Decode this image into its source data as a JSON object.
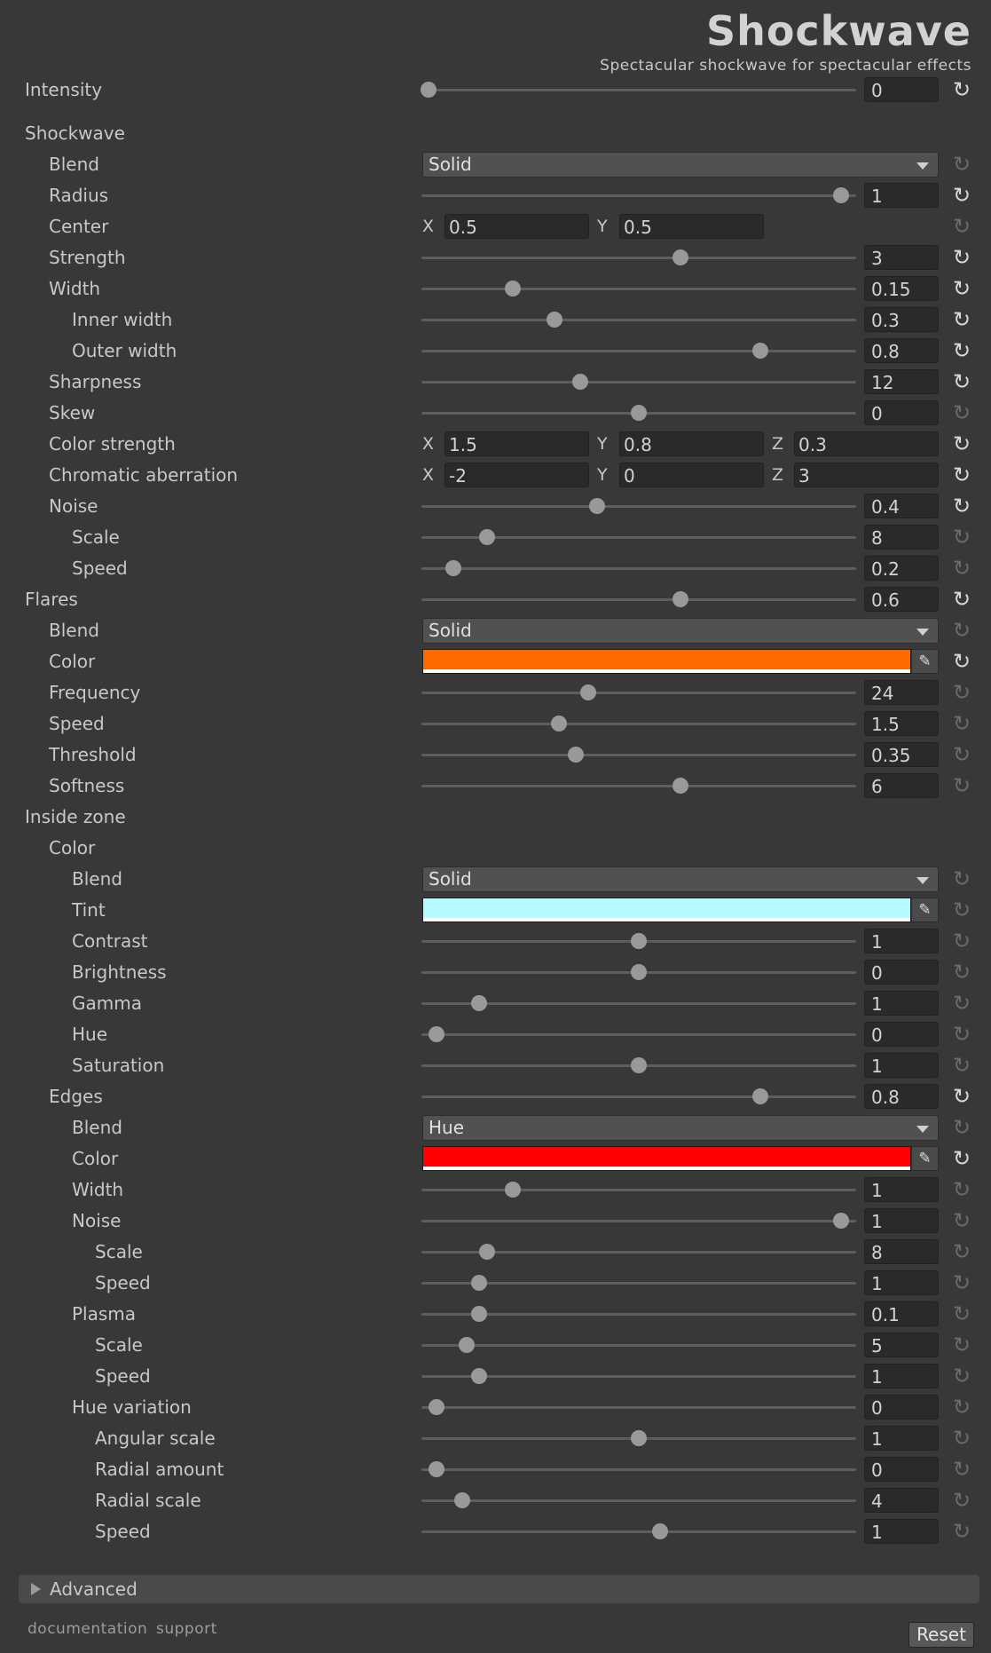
{
  "header": {
    "title": "Shockwave",
    "subtitle": "Spectacular shockwave for spectacular effects"
  },
  "rows": [
    {
      "label": "Intensity",
      "indent": 0,
      "type": "slider",
      "t": 0,
      "value": "0",
      "active": true,
      "top": 101
    },
    {
      "label": "Shockwave",
      "indent": 0,
      "type": "header",
      "top": 150
    },
    {
      "label": "Blend",
      "indent": 1,
      "type": "dropdown",
      "value": "Solid",
      "active": false,
      "top": 185
    },
    {
      "label": "Radius",
      "indent": 1,
      "type": "slider",
      "t": 0.98,
      "value": "1",
      "active": true,
      "top": 220
    },
    {
      "label": "Center",
      "indent": 1,
      "type": "vec2",
      "values": [
        "0.5",
        "0.5"
      ],
      "active": false,
      "top": 255
    },
    {
      "label": "Strength",
      "indent": 1,
      "type": "slider",
      "t": 0.6,
      "value": "3",
      "active": true,
      "top": 290
    },
    {
      "label": "Width",
      "indent": 1,
      "type": "slider",
      "t": 0.2,
      "value": "0.15",
      "active": true,
      "top": 325
    },
    {
      "label": "Inner width",
      "indent": 2,
      "type": "slider",
      "t": 0.3,
      "value": "0.3",
      "active": true,
      "top": 360
    },
    {
      "label": "Outer width",
      "indent": 2,
      "type": "slider",
      "t": 0.79,
      "value": "0.8",
      "active": true,
      "top": 395
    },
    {
      "label": "Sharpness",
      "indent": 1,
      "type": "slider",
      "t": 0.36,
      "value": "12",
      "active": true,
      "top": 430
    },
    {
      "label": "Skew",
      "indent": 1,
      "type": "slider",
      "t": 0.5,
      "value": "0",
      "active": false,
      "top": 465
    },
    {
      "label": "Color strength",
      "indent": 1,
      "type": "vec3",
      "values": [
        "1.5",
        "0.8",
        "0.3"
      ],
      "active": true,
      "top": 500
    },
    {
      "label": "Chromatic aberration",
      "indent": 1,
      "type": "vec3",
      "values": [
        "-2",
        "0",
        "3"
      ],
      "active": true,
      "top": 535
    },
    {
      "label": "Noise",
      "indent": 1,
      "type": "slider",
      "t": 0.4,
      "value": "0.4",
      "active": true,
      "top": 570
    },
    {
      "label": "Scale",
      "indent": 2,
      "type": "slider",
      "t": 0.14,
      "value": "8",
      "active": false,
      "top": 605
    },
    {
      "label": "Speed",
      "indent": 2,
      "type": "slider",
      "t": 0.06,
      "value": "0.2",
      "active": false,
      "top": 640
    },
    {
      "label": "Flares",
      "indent": 0,
      "type": "slider",
      "t": 0.6,
      "value": "0.6",
      "active": true,
      "top": 675
    },
    {
      "label": "Blend",
      "indent": 1,
      "type": "dropdown",
      "value": "Solid",
      "active": false,
      "top": 710
    },
    {
      "label": "Color",
      "indent": 1,
      "type": "color",
      "color": "#ff6a00",
      "active": true,
      "top": 745
    },
    {
      "label": "Frequency",
      "indent": 1,
      "type": "slider",
      "t": 0.38,
      "value": "24",
      "active": false,
      "top": 780
    },
    {
      "label": "Speed",
      "indent": 1,
      "type": "slider",
      "t": 0.31,
      "value": "1.5",
      "active": false,
      "top": 815
    },
    {
      "label": "Threshold",
      "indent": 1,
      "type": "slider",
      "t": 0.35,
      "value": "0.35",
      "active": false,
      "top": 850
    },
    {
      "label": "Softness",
      "indent": 1,
      "type": "slider",
      "t": 0.6,
      "value": "6",
      "active": false,
      "top": 885
    },
    {
      "label": "Inside zone",
      "indent": 0,
      "type": "header",
      "top": 920
    },
    {
      "label": "Color",
      "indent": 1,
      "type": "header",
      "top": 955
    },
    {
      "label": "Blend",
      "indent": 2,
      "type": "dropdown",
      "value": "Solid",
      "active": false,
      "top": 990
    },
    {
      "label": "Tint",
      "indent": 2,
      "type": "color",
      "color": "#b4faff",
      "active": false,
      "top": 1025
    },
    {
      "label": "Contrast",
      "indent": 2,
      "type": "slider",
      "t": 0.5,
      "value": "1",
      "active": false,
      "top": 1060
    },
    {
      "label": "Brightness",
      "indent": 2,
      "type": "slider",
      "t": 0.5,
      "value": "0",
      "active": false,
      "top": 1095
    },
    {
      "label": "Gamma",
      "indent": 2,
      "type": "slider",
      "t": 0.12,
      "value": "1",
      "active": false,
      "top": 1130
    },
    {
      "label": "Hue",
      "indent": 2,
      "type": "slider",
      "t": 0.02,
      "value": "0",
      "active": false,
      "top": 1165
    },
    {
      "label": "Saturation",
      "indent": 2,
      "type": "slider",
      "t": 0.5,
      "value": "1",
      "active": false,
      "top": 1200
    },
    {
      "label": "Edges",
      "indent": 1,
      "type": "slider",
      "t": 0.79,
      "value": "0.8",
      "active": true,
      "top": 1235
    },
    {
      "label": "Blend",
      "indent": 2,
      "type": "dropdown",
      "value": "Hue",
      "active": false,
      "top": 1270
    },
    {
      "label": "Color",
      "indent": 2,
      "type": "color",
      "color": "#ff0000",
      "active": true,
      "top": 1305
    },
    {
      "label": "Width",
      "indent": 2,
      "type": "slider",
      "t": 0.2,
      "value": "1",
      "active": false,
      "top": 1340
    },
    {
      "label": "Noise",
      "indent": 2,
      "type": "slider",
      "t": 0.98,
      "value": "1",
      "active": false,
      "top": 1375
    },
    {
      "label": "Scale",
      "indent": 3,
      "type": "slider",
      "t": 0.14,
      "value": "8",
      "active": false,
      "top": 1410
    },
    {
      "label": "Speed",
      "indent": 3,
      "type": "slider",
      "t": 0.12,
      "value": "1",
      "active": false,
      "top": 1445
    },
    {
      "label": "Plasma",
      "indent": 2,
      "type": "slider",
      "t": 0.12,
      "value": "0.1",
      "active": false,
      "top": 1480
    },
    {
      "label": "Scale",
      "indent": 3,
      "type": "slider",
      "t": 0.09,
      "value": "5",
      "active": false,
      "top": 1515
    },
    {
      "label": "Speed",
      "indent": 3,
      "type": "slider",
      "t": 0.12,
      "value": "1",
      "active": false,
      "top": 1550
    },
    {
      "label": "Hue variation",
      "indent": 2,
      "type": "slider",
      "t": 0.02,
      "value": "0",
      "active": false,
      "top": 1585
    },
    {
      "label": "Angular scale",
      "indent": 3,
      "type": "slider",
      "t": 0.5,
      "value": "1",
      "active": false,
      "top": 1620
    },
    {
      "label": "Radial amount",
      "indent": 3,
      "type": "slider",
      "t": 0.02,
      "value": "0",
      "active": false,
      "top": 1655
    },
    {
      "label": "Radial scale",
      "indent": 3,
      "type": "slider",
      "t": 0.08,
      "value": "4",
      "active": false,
      "top": 1690
    },
    {
      "label": "Speed",
      "indent": 3,
      "type": "slider",
      "t": 0.55,
      "value": "1",
      "active": false,
      "top": 1725
    }
  ],
  "advanced": {
    "label": "Advanced"
  },
  "footer": {
    "documentation": "documentation",
    "support": "support",
    "reset": "Reset"
  }
}
